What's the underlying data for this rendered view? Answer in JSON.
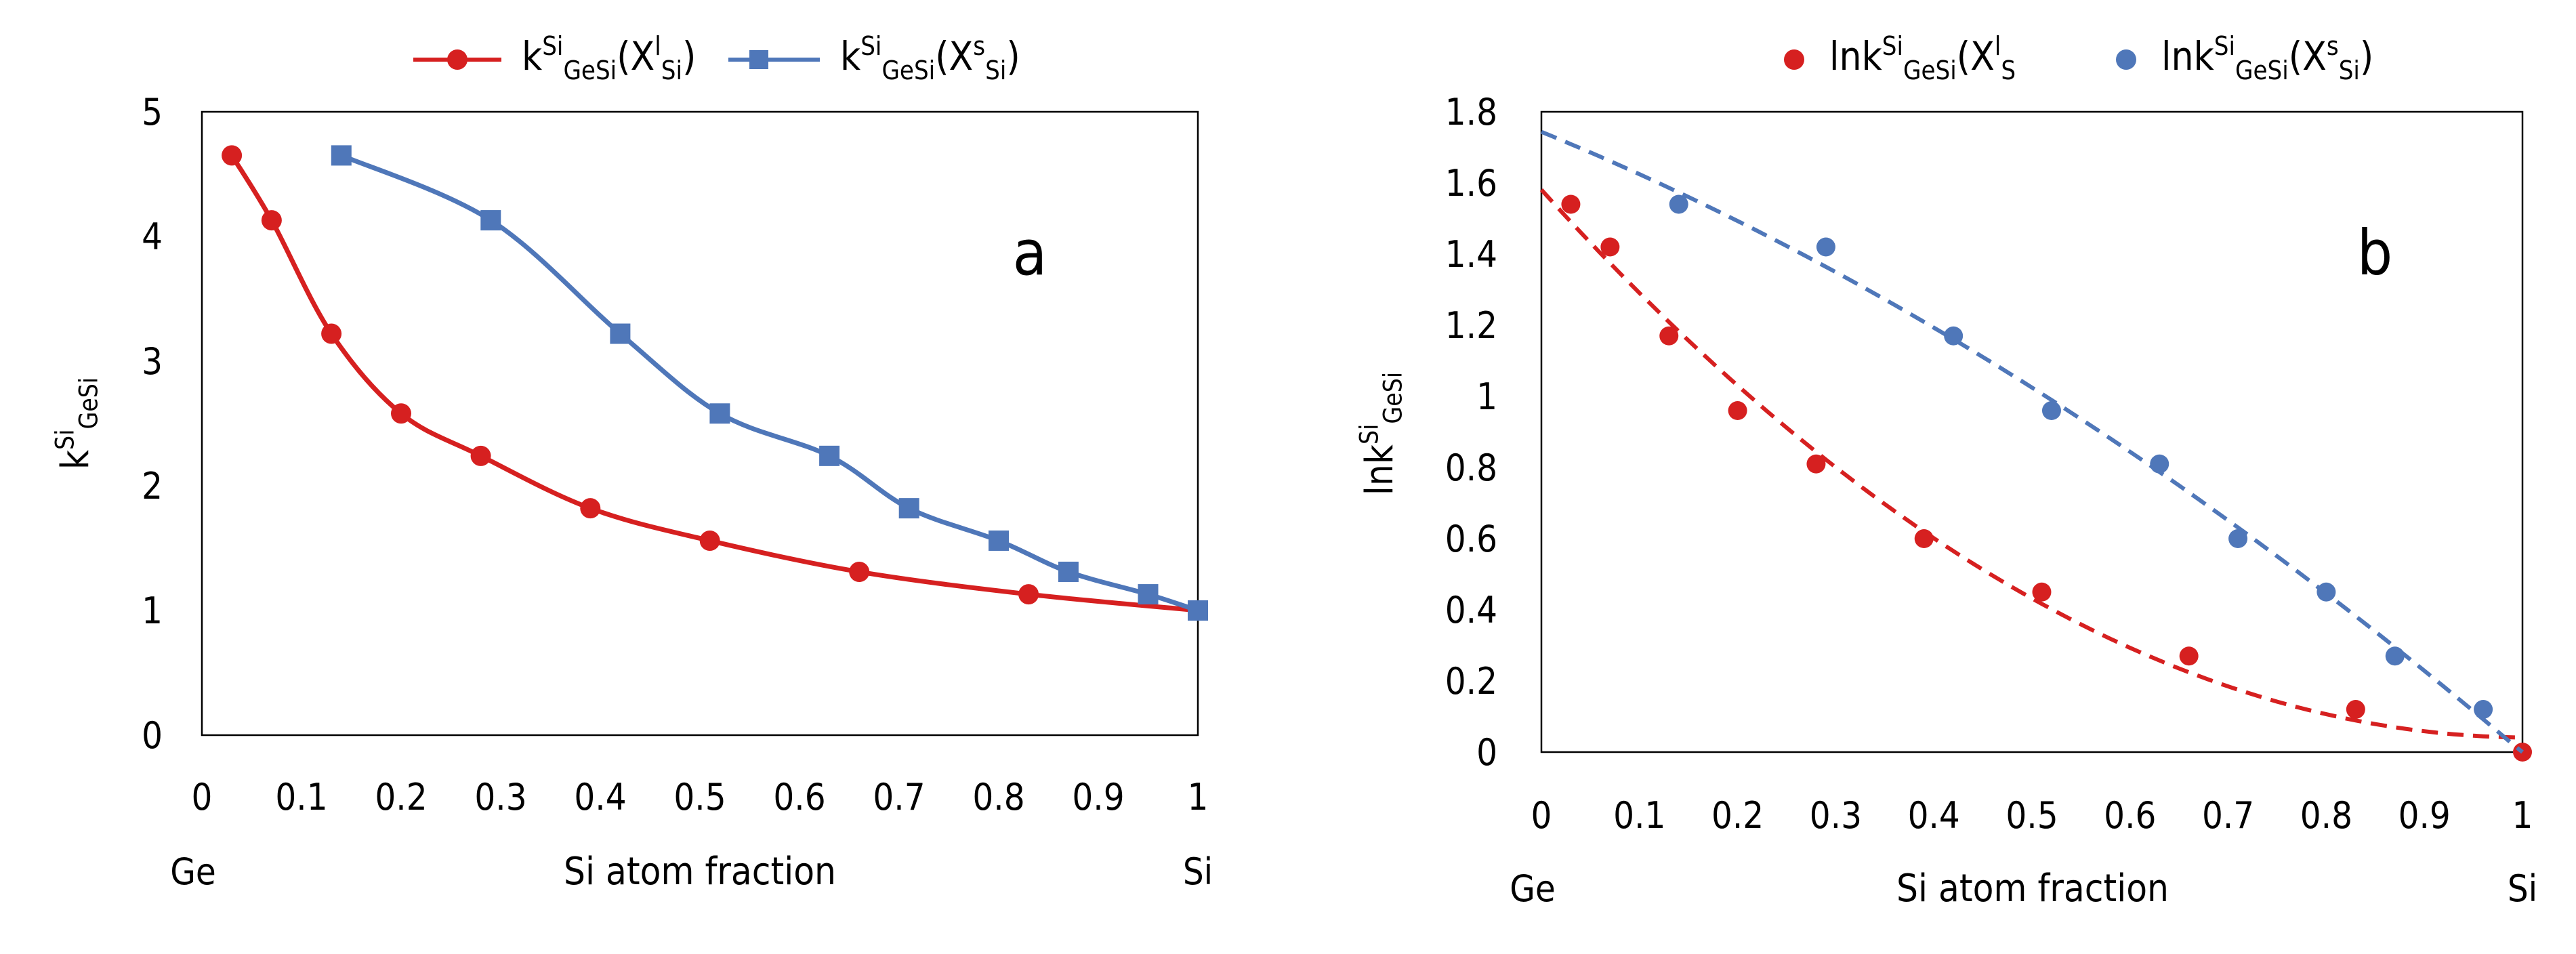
{
  "chart_data": [
    {
      "type": "line",
      "panel_label": "a",
      "title": "",
      "xlabel": "Si atom fraction",
      "ylabel": "k^Si_GeSi",
      "xlim": [
        0,
        1
      ],
      "ylim": [
        0,
        5
      ],
      "x_ticks": [
        "0",
        "0.1",
        "0.2",
        "0.3",
        "0.4",
        "0.5",
        "0.6",
        "0.7",
        "0.8",
        "0.9",
        "1"
      ],
      "y_ticks": [
        "0",
        "1",
        "2",
        "3",
        "4",
        "5"
      ],
      "x_end_labels": {
        "left": "Ge",
        "right": "Si"
      },
      "grid": false,
      "legend_position": "top",
      "series": [
        {
          "name": "kSiGeSi(Xl Si)",
          "color": "#d62020",
          "marker": "circle",
          "x": [
            0.03,
            0.07,
            0.13,
            0.2,
            0.28,
            0.39,
            0.51,
            0.66,
            0.83,
            1.0
          ],
          "y": [
            4.65,
            4.13,
            3.22,
            2.58,
            2.24,
            1.82,
            1.56,
            1.31,
            1.13,
            1.0
          ]
        },
        {
          "name": "kSiGeSi(Xs Si)",
          "color": "#4f77b9",
          "marker": "square",
          "x": [
            0.14,
            0.29,
            0.42,
            0.52,
            0.63,
            0.71,
            0.8,
            0.87,
            0.95,
            1.0
          ],
          "y": [
            4.65,
            4.13,
            3.22,
            2.58,
            2.24,
            1.82,
            1.56,
            1.31,
            1.13,
            1.0
          ]
        }
      ]
    },
    {
      "type": "scatter",
      "panel_label": "b",
      "title": "",
      "xlabel": "Si atom fraction",
      "ylabel": "lnk^Si_GeSi",
      "xlim": [
        0,
        1
      ],
      "ylim": [
        0,
        1.8
      ],
      "x_ticks": [
        "0",
        "0.1",
        "0.2",
        "0.3",
        "0.4",
        "0.5",
        "0.6",
        "0.7",
        "0.8",
        "0.9",
        "1"
      ],
      "y_ticks": [
        "0",
        "0.2",
        "0.4",
        "0.6",
        "0.8",
        "1",
        "1.2",
        "1.4",
        "1.6",
        "1.8"
      ],
      "x_end_labels": {
        "left": "Ge",
        "right": "Si"
      },
      "grid": false,
      "legend_position": "top",
      "series": [
        {
          "name": "lnkSiGeSi(Xl S",
          "color": "#d62020",
          "marker": "circle",
          "trendline": "dashed",
          "x": [
            0.03,
            0.07,
            0.13,
            0.2,
            0.28,
            0.39,
            0.51,
            0.66,
            0.83,
            1.0
          ],
          "y": [
            1.54,
            1.42,
            1.17,
            0.96,
            0.81,
            0.6,
            0.45,
            0.27,
            0.12,
            0.0
          ]
        },
        {
          "name": "lnkSiGeSi(Xs Si)",
          "color": "#4f77b9",
          "marker": "circle",
          "trendline": "dashed",
          "x": [
            0.14,
            0.29,
            0.42,
            0.52,
            0.63,
            0.71,
            0.8,
            0.87,
            0.96
          ],
          "y": [
            1.54,
            1.42,
            1.17,
            0.96,
            0.81,
            0.6,
            0.45,
            0.27,
            0.12
          ]
        }
      ]
    }
  ],
  "legend_text": {
    "a": [
      {
        "base": "k",
        "sup": "Si",
        "sub": "GeSi",
        "open": "(X",
        "sup2": "l",
        "sub2": "Si",
        "close": ")"
      },
      {
        "base": "k",
        "sup": "Si",
        "sub": "GeSi",
        "open": "(X",
        "sup2": "s",
        "sub2": "Si",
        "close": ")"
      }
    ],
    "b": [
      {
        "base": "lnk",
        "sup": "Si",
        "sub": "GeSi",
        "open": "(X",
        "sup2": "l",
        "sub2": "S",
        "close": ""
      },
      {
        "base": "lnk",
        "sup": "Si",
        "sub": "GeSi",
        "open": "(X",
        "sup2": "s",
        "sub2": "Si",
        "close": ")"
      }
    ]
  },
  "ylabel_text": {
    "a": {
      "base": "k",
      "sup": "Si",
      "sub": "GeSi"
    },
    "b": {
      "base": "lnk",
      "sup": "Si",
      "sub": "GeSi"
    }
  }
}
